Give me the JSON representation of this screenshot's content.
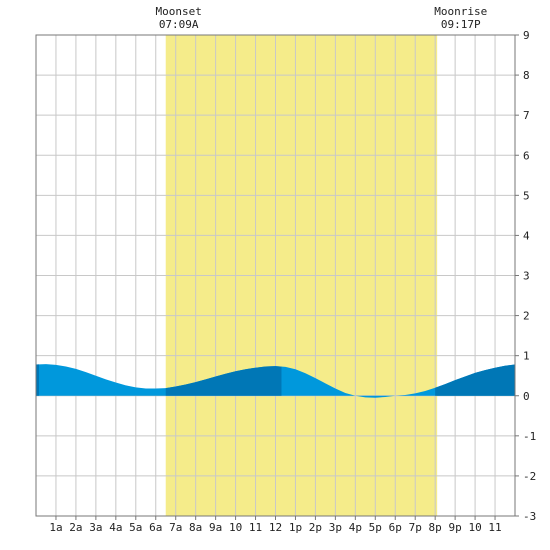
{
  "chart_data": {
    "type": "area",
    "title": "",
    "xlabel": "",
    "ylabel": "",
    "xlim": [
      0,
      24
    ],
    "ylim": [
      -3,
      9
    ],
    "grid": true,
    "x_tick_labels": [
      "1a",
      "2a",
      "3a",
      "4a",
      "5a",
      "6a",
      "7a",
      "8a",
      "9a",
      "10",
      "11",
      "12",
      "1p",
      "2p",
      "3p",
      "4p",
      "5p",
      "6p",
      "7p",
      "8p",
      "9p",
      "10",
      "11"
    ],
    "y_ticks": [
      -3,
      -2,
      -1,
      0,
      1,
      2,
      3,
      4,
      5,
      6,
      7,
      8,
      9
    ],
    "daylight_band": {
      "start_hour": 6.5,
      "end_hour": 20.1,
      "color": "#f5ec8a"
    },
    "annotations": [
      {
        "label": "Moonset",
        "time": "07:09A",
        "hour": 7.15
      },
      {
        "label": "Moonrise",
        "time": "09:17P",
        "hour": 21.28
      }
    ],
    "tide_series": {
      "x": [
        0,
        0.5,
        1,
        1.5,
        2,
        2.5,
        3,
        3.5,
        4,
        4.5,
        5,
        5.5,
        6,
        6.5,
        7,
        7.5,
        8,
        8.5,
        9,
        9.5,
        10,
        10.5,
        11,
        11.5,
        12,
        12.5,
        13,
        13.5,
        14,
        14.5,
        15,
        15.5,
        16,
        16.5,
        17,
        17.5,
        18,
        18.5,
        19,
        19.5,
        20,
        20.5,
        21,
        21.5,
        22,
        22.5,
        23,
        23.5,
        24
      ],
      "y": [
        0.78,
        0.79,
        0.77,
        0.73,
        0.67,
        0.59,
        0.5,
        0.41,
        0.33,
        0.26,
        0.21,
        0.18,
        0.18,
        0.19,
        0.23,
        0.28,
        0.34,
        0.41,
        0.48,
        0.55,
        0.61,
        0.66,
        0.7,
        0.73,
        0.74,
        0.72,
        0.66,
        0.56,
        0.44,
        0.31,
        0.18,
        0.07,
        0.0,
        -0.04,
        -0.05,
        -0.03,
        0.0,
        0.02,
        0.06,
        0.12,
        0.2,
        0.29,
        0.39,
        0.48,
        0.57,
        0.64,
        0.7,
        0.75,
        0.78
      ]
    },
    "dark_intervals": [
      [
        0,
        0.15
      ],
      [
        6.5,
        12.3
      ],
      [
        20.0,
        24
      ]
    ],
    "colors": {
      "tide_light": "#0098dc",
      "tide_dark": "#0077b6",
      "grid": "#c8c8c8",
      "frame": "#777777"
    }
  }
}
